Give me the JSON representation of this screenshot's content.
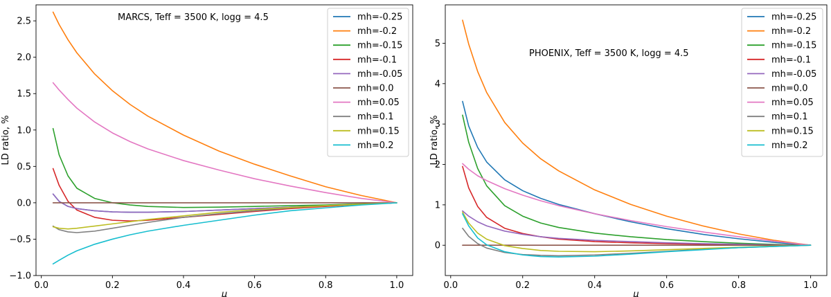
{
  "chart_data": [
    {
      "type": "line",
      "annotation": "MARCS, Teff = 3500 K, logg = 4.5",
      "xlabel": "μ",
      "ylabel": "LD ratio, %",
      "xlim": [
        -0.015,
        1.045
      ],
      "ylim": [
        -1.0,
        2.72
      ],
      "xticks": [
        0.0,
        0.2,
        0.4,
        0.6,
        0.8,
        1.0
      ],
      "xtick_labels": [
        "0.0",
        "0.2",
        "0.4",
        "0.6",
        "0.8",
        "1.0"
      ],
      "yticks": [
        -1.0,
        -0.5,
        0.0,
        0.5,
        1.0,
        1.5,
        2.0,
        2.5
      ],
      "ytick_labels": [
        "−1.0",
        "−0.5",
        "0.0",
        "0.5",
        "1.0",
        "1.5",
        "2.0",
        "2.5"
      ],
      "legend_position": "top-right",
      "x": [
        0.033,
        0.05,
        0.075,
        0.1,
        0.15,
        0.2,
        0.25,
        0.3,
        0.4,
        0.5,
        0.6,
        0.7,
        0.8,
        0.9,
        1.0
      ],
      "series": [
        {
          "name": "mh=-0.25",
          "color": "#1f77b4",
          "values": [
            0.12,
            0.02,
            -0.05,
            -0.08,
            -0.11,
            -0.125,
            -0.13,
            -0.13,
            -0.12,
            -0.1,
            -0.08,
            -0.06,
            -0.04,
            -0.02,
            0.0
          ]
        },
        {
          "name": "mh=-0.2",
          "color": "#ff7f0e",
          "values": [
            2.62,
            2.45,
            2.24,
            2.06,
            1.77,
            1.54,
            1.35,
            1.19,
            0.93,
            0.71,
            0.53,
            0.37,
            0.22,
            0.1,
            0.0
          ]
        },
        {
          "name": "mh=-0.15",
          "color": "#2ca02c",
          "values": [
            1.02,
            0.66,
            0.37,
            0.2,
            0.06,
            0.0,
            -0.03,
            -0.05,
            -0.065,
            -0.06,
            -0.05,
            -0.04,
            -0.03,
            -0.015,
            0.0
          ]
        },
        {
          "name": "mh=-0.1",
          "color": "#d62728",
          "values": [
            0.47,
            0.24,
            0.02,
            -0.1,
            -0.2,
            -0.24,
            -0.25,
            -0.24,
            -0.2,
            -0.16,
            -0.12,
            -0.08,
            -0.05,
            -0.02,
            0.0
          ]
        },
        {
          "name": "mh=-0.05",
          "color": "#9467bd",
          "values": [
            0.12,
            0.02,
            -0.05,
            -0.08,
            -0.11,
            -0.125,
            -0.13,
            -0.13,
            -0.12,
            -0.1,
            -0.08,
            -0.06,
            -0.04,
            -0.02,
            0.0
          ]
        },
        {
          "name": "mh=0.0",
          "color": "#8c564b",
          "values": [
            0.0,
            0.0,
            0.0,
            0.0,
            0.0,
            0.0,
            0.0,
            0.0,
            0.0,
            0.0,
            0.0,
            0.0,
            0.0,
            0.0,
            0.0
          ]
        },
        {
          "name": "mh=0.05",
          "color": "#e377c2",
          "values": [
            1.65,
            1.55,
            1.42,
            1.3,
            1.11,
            0.96,
            0.84,
            0.74,
            0.58,
            0.45,
            0.33,
            0.23,
            0.14,
            0.06,
            0.0
          ]
        },
        {
          "name": "mh=0.1",
          "color": "#7f7f7f",
          "values": [
            -0.32,
            -0.37,
            -0.4,
            -0.41,
            -0.39,
            -0.35,
            -0.31,
            -0.27,
            -0.2,
            -0.15,
            -0.11,
            -0.07,
            -0.04,
            -0.02,
            0.0
          ]
        },
        {
          "name": "mh=0.15",
          "color": "#bcbd22",
          "values": [
            -0.33,
            -0.35,
            -0.36,
            -0.35,
            -0.32,
            -0.29,
            -0.26,
            -0.23,
            -0.18,
            -0.13,
            -0.095,
            -0.065,
            -0.04,
            -0.02,
            0.0
          ]
        },
        {
          "name": "mh=0.2",
          "color": "#17becf",
          "values": [
            -0.84,
            -0.79,
            -0.72,
            -0.66,
            -0.57,
            -0.5,
            -0.44,
            -0.39,
            -0.31,
            -0.24,
            -0.17,
            -0.11,
            -0.07,
            -0.03,
            0.0
          ]
        }
      ]
    },
    {
      "type": "line",
      "annotation": "PHOENIX, Teff = 3500 K, logg = 4.5",
      "xlabel": "μ",
      "ylabel": "LD ratio, %",
      "xlim": [
        -0.015,
        1.045
      ],
      "ylim": [
        -0.75,
        5.95
      ],
      "xticks": [
        0.0,
        0.2,
        0.4,
        0.6,
        0.8,
        1.0
      ],
      "xtick_labels": [
        "0.0",
        "0.2",
        "0.4",
        "0.6",
        "0.8",
        "1.0"
      ],
      "yticks": [
        0,
        1,
        2,
        3,
        4,
        5
      ],
      "ytick_labels": [
        "0",
        "1",
        "2",
        "3",
        "4",
        "5"
      ],
      "legend_position": "top-right",
      "x": [
        0.033,
        0.05,
        0.075,
        0.1,
        0.15,
        0.2,
        0.25,
        0.3,
        0.4,
        0.5,
        0.6,
        0.7,
        0.8,
        0.9,
        1.0
      ],
      "series": [
        {
          "name": "mh=-0.25",
          "color": "#1f77b4",
          "values": [
            3.56,
            2.95,
            2.42,
            2.06,
            1.62,
            1.35,
            1.16,
            1.01,
            0.78,
            0.58,
            0.41,
            0.27,
            0.16,
            0.07,
            0.0
          ]
        },
        {
          "name": "mh=-0.2",
          "color": "#ff7f0e",
          "values": [
            5.57,
            4.98,
            4.3,
            3.78,
            3.04,
            2.53,
            2.14,
            1.84,
            1.37,
            1.01,
            0.72,
            0.48,
            0.28,
            0.12,
            0.0
          ]
        },
        {
          "name": "mh=-0.15",
          "color": "#2ca02c",
          "values": [
            3.22,
            2.55,
            1.9,
            1.47,
            0.98,
            0.72,
            0.55,
            0.44,
            0.3,
            0.21,
            0.14,
            0.09,
            0.05,
            0.02,
            0.0
          ]
        },
        {
          "name": "mh=-0.1",
          "color": "#d62728",
          "values": [
            1.95,
            1.42,
            0.96,
            0.69,
            0.42,
            0.29,
            0.21,
            0.15,
            0.09,
            0.06,
            0.04,
            0.025,
            0.015,
            0.005,
            0.0
          ]
        },
        {
          "name": "mh=-0.05",
          "color": "#9467bd",
          "values": [
            0.85,
            0.72,
            0.58,
            0.48,
            0.35,
            0.27,
            0.21,
            0.17,
            0.12,
            0.09,
            0.06,
            0.04,
            0.025,
            0.01,
            0.0
          ]
        },
        {
          "name": "mh=0.0",
          "color": "#8c564b",
          "values": [
            0.0,
            0.0,
            0.0,
            0.0,
            0.0,
            0.0,
            0.0,
            0.0,
            0.0,
            0.0,
            0.0,
            0.0,
            0.0,
            0.0,
            0.0
          ]
        },
        {
          "name": "mh=0.05",
          "color": "#e377c2",
          "values": [
            2.02,
            1.88,
            1.72,
            1.6,
            1.4,
            1.24,
            1.1,
            0.98,
            0.78,
            0.61,
            0.46,
            0.33,
            0.21,
            0.1,
            0.0
          ]
        },
        {
          "name": "mh=0.1",
          "color": "#7f7f7f",
          "values": [
            0.42,
            0.22,
            0.04,
            -0.07,
            -0.18,
            -0.23,
            -0.25,
            -0.26,
            -0.24,
            -0.2,
            -0.15,
            -0.1,
            -0.06,
            -0.03,
            0.0
          ]
        },
        {
          "name": "mh=0.15",
          "color": "#bcbd22",
          "values": [
            0.82,
            0.55,
            0.3,
            0.15,
            -0.01,
            -0.08,
            -0.13,
            -0.15,
            -0.16,
            -0.14,
            -0.11,
            -0.08,
            -0.05,
            -0.02,
            0.0
          ]
        },
        {
          "name": "mh=0.2",
          "color": "#17becf",
          "values": [
            0.78,
            0.48,
            0.18,
            0.01,
            -0.16,
            -0.24,
            -0.28,
            -0.29,
            -0.27,
            -0.22,
            -0.16,
            -0.11,
            -0.06,
            -0.03,
            0.0
          ]
        }
      ]
    }
  ]
}
